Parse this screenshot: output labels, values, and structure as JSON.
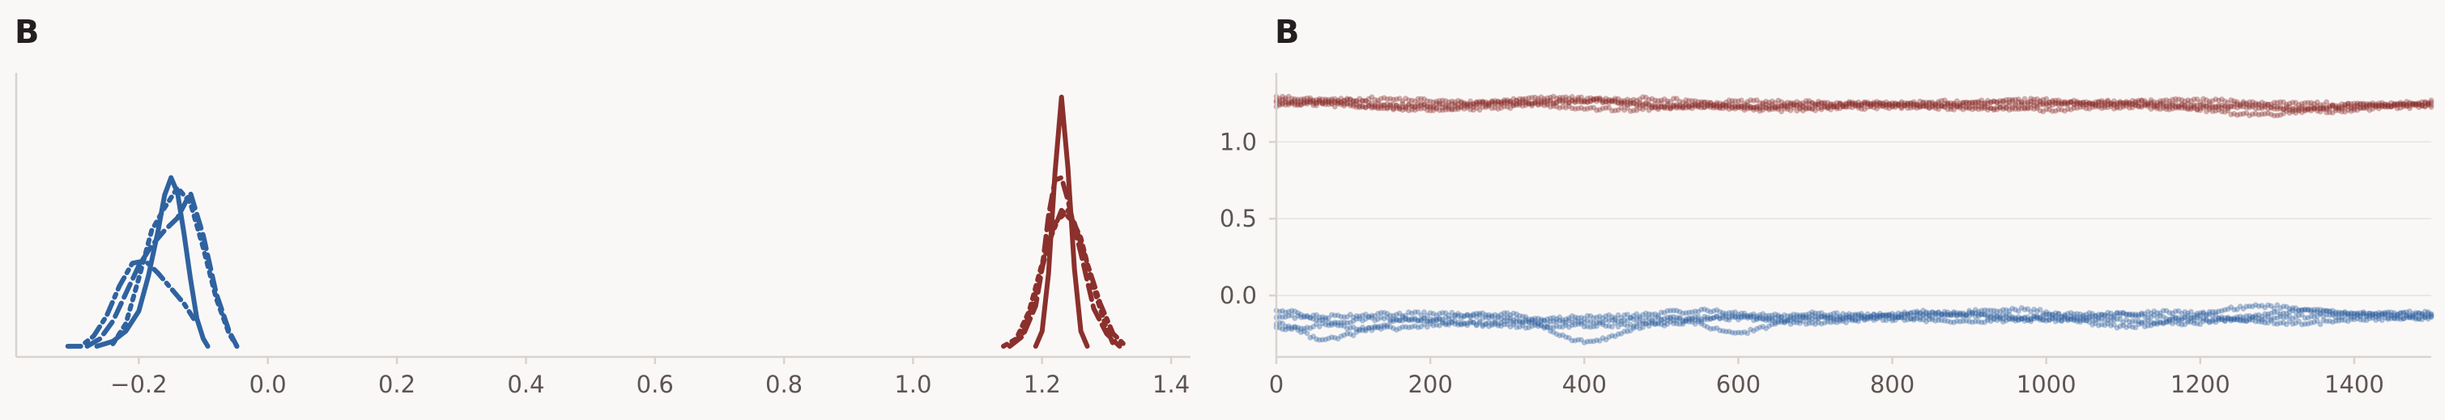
{
  "panels": {
    "left_label": "B",
    "right_label": "B"
  },
  "colors": {
    "blue": "#2f62a0",
    "red": "#8b302c"
  },
  "chart_data": [
    {
      "type": "line",
      "subtype": "density",
      "title": "",
      "xlabel": "",
      "ylabel": "",
      "xlim": [
        -0.39,
        1.43
      ],
      "ylim": [
        0,
        1.0
      ],
      "xticks": [
        "−0.2",
        "0.0",
        "0.2",
        "0.4",
        "0.6",
        "0.8",
        "1.0",
        "1.2",
        "1.4"
      ],
      "xtick_values": [
        -0.2,
        0.0,
        0.2,
        0.4,
        0.6,
        0.8,
        1.0,
        1.2,
        1.4
      ],
      "yticks": [],
      "grid": false,
      "series": [
        {
          "group": "blue",
          "style": "solid",
          "x": [
            -0.265,
            -0.24,
            -0.22,
            -0.2,
            -0.185,
            -0.17,
            -0.16,
            -0.15,
            -0.14,
            -0.13,
            -0.12,
            -0.11,
            -0.1,
            -0.093
          ],
          "y": [
            0.01,
            0.03,
            0.07,
            0.15,
            0.29,
            0.47,
            0.61,
            0.68,
            0.62,
            0.46,
            0.28,
            0.12,
            0.04,
            0.01
          ]
        },
        {
          "group": "blue",
          "style": "dash",
          "x": [
            -0.28,
            -0.26,
            -0.24,
            -0.22,
            -0.2,
            -0.18,
            -0.16,
            -0.14,
            -0.12,
            -0.1,
            -0.08,
            -0.06,
            -0.048
          ],
          "y": [
            0.01,
            0.04,
            0.11,
            0.22,
            0.33,
            0.41,
            0.47,
            0.52,
            0.62,
            0.45,
            0.22,
            0.07,
            0.01
          ]
        },
        {
          "group": "blue",
          "style": "dot",
          "x": [
            -0.24,
            -0.22,
            -0.2,
            -0.18,
            -0.16,
            -0.14,
            -0.12,
            -0.1,
            -0.08,
            -0.06,
            -0.048
          ],
          "y": [
            0.02,
            0.1,
            0.28,
            0.47,
            0.56,
            0.64,
            0.58,
            0.4,
            0.2,
            0.06,
            0.01
          ]
        },
        {
          "group": "blue",
          "style": "dashdot",
          "x": [
            -0.31,
            -0.29,
            -0.27,
            -0.25,
            -0.23,
            -0.21,
            -0.19,
            -0.17,
            -0.15,
            -0.13,
            -0.115
          ],
          "y": [
            0.01,
            0.01,
            0.05,
            0.13,
            0.25,
            0.34,
            0.35,
            0.3,
            0.24,
            0.18,
            0.12
          ]
        },
        {
          "group": "red",
          "style": "solid",
          "x": [
            1.19,
            1.2,
            1.21,
            1.22,
            1.23,
            1.24,
            1.25,
            1.26,
            1.27
          ],
          "y": [
            0.01,
            0.07,
            0.3,
            0.7,
            1.0,
            0.72,
            0.32,
            0.07,
            0.01
          ]
        },
        {
          "group": "red",
          "style": "dash",
          "x": [
            1.15,
            1.17,
            1.19,
            1.2,
            1.21,
            1.22,
            1.23,
            1.24,
            1.25,
            1.26,
            1.27,
            1.28,
            1.3,
            1.32
          ],
          "y": [
            0.01,
            0.05,
            0.17,
            0.32,
            0.53,
            0.67,
            0.68,
            0.59,
            0.48,
            0.38,
            0.27,
            0.16,
            0.06,
            0.01
          ]
        },
        {
          "group": "red",
          "style": "dot",
          "x": [
            1.14,
            1.16,
            1.18,
            1.2,
            1.22,
            1.24,
            1.26,
            1.28,
            1.3,
            1.31
          ],
          "y": [
            0.01,
            0.04,
            0.15,
            0.34,
            0.5,
            0.55,
            0.44,
            0.24,
            0.08,
            0.02
          ]
        },
        {
          "group": "red",
          "style": "dashdot",
          "x": [
            1.15,
            1.17,
            1.19,
            1.21,
            1.23,
            1.25,
            1.27,
            1.29,
            1.31,
            1.33
          ],
          "y": [
            0.01,
            0.06,
            0.22,
            0.42,
            0.55,
            0.5,
            0.34,
            0.18,
            0.06,
            0.01
          ]
        }
      ]
    },
    {
      "type": "scatter",
      "subtype": "trace",
      "title": "",
      "xlabel": "",
      "ylabel": "",
      "xlim": [
        0,
        1500
      ],
      "ylim": [
        -0.4,
        1.45
      ],
      "xticks": [
        "0",
        "200",
        "400",
        "600",
        "800",
        "1000",
        "1200",
        "1400"
      ],
      "xtick_values": [
        0,
        200,
        400,
        600,
        800,
        1000,
        1200,
        1400
      ],
      "yticks": [
        "0.0",
        "0.5",
        "1.0"
      ],
      "ytick_values": [
        0.0,
        0.5,
        1.0
      ],
      "grid": true,
      "draws": 1500,
      "series": [
        {
          "group": "red",
          "center": 1.235,
          "anchors": [
            [
              0,
              1.29
            ],
            [
              80,
              1.27
            ],
            [
              160,
              1.24
            ],
            [
              260,
              1.22
            ],
            [
              400,
              1.27
            ],
            [
              500,
              1.24
            ],
            [
              620,
              1.22
            ],
            [
              760,
              1.24
            ],
            [
              900,
              1.22
            ],
            [
              1100,
              1.26
            ],
            [
              1280,
              1.18
            ],
            [
              1400,
              1.24
            ],
            [
              1500,
              1.25
            ]
          ]
        },
        {
          "group": "red",
          "center": 1.235,
          "anchors": [
            [
              0,
              1.24
            ],
            [
              120,
              1.28
            ],
            [
              300,
              1.25
            ],
            [
              450,
              1.21
            ],
            [
              600,
              1.26
            ],
            [
              800,
              1.25
            ],
            [
              1000,
              1.21
            ],
            [
              1150,
              1.24
            ],
            [
              1320,
              1.22
            ],
            [
              1500,
              1.23
            ]
          ]
        },
        {
          "group": "red",
          "center": 1.235,
          "anchors": [
            [
              0,
              1.27
            ],
            [
              200,
              1.21
            ],
            [
              350,
              1.29
            ],
            [
              520,
              1.23
            ],
            [
              700,
              1.24
            ],
            [
              880,
              1.26
            ],
            [
              1050,
              1.25
            ],
            [
              1200,
              1.27
            ],
            [
              1380,
              1.2
            ],
            [
              1500,
              1.26
            ]
          ]
        },
        {
          "group": "red",
          "center": 1.235,
          "anchors": [
            [
              0,
              1.25
            ],
            [
              150,
              1.23
            ],
            [
              330,
              1.26
            ],
            [
              480,
              1.28
            ],
            [
              650,
              1.21
            ],
            [
              820,
              1.23
            ],
            [
              980,
              1.27
            ],
            [
              1180,
              1.22
            ],
            [
              1300,
              1.25
            ],
            [
              1500,
              1.24
            ]
          ]
        },
        {
          "group": "blue",
          "center": -0.15,
          "anchors": [
            [
              0,
              -0.18
            ],
            [
              60,
              -0.28
            ],
            [
              180,
              -0.16
            ],
            [
              300,
              -0.12
            ],
            [
              400,
              -0.3
            ],
            [
              520,
              -0.16
            ],
            [
              600,
              -0.24
            ],
            [
              700,
              -0.12
            ],
            [
              820,
              -0.14
            ],
            [
              960,
              -0.09
            ],
            [
              1100,
              -0.2
            ],
            [
              1280,
              -0.07
            ],
            [
              1400,
              -0.12
            ],
            [
              1500,
              -0.11
            ]
          ]
        },
        {
          "group": "blue",
          "center": -0.15,
          "anchors": [
            [
              0,
              -0.1
            ],
            [
              120,
              -0.22
            ],
            [
              260,
              -0.18
            ],
            [
              420,
              -0.14
            ],
            [
              560,
              -0.1
            ],
            [
              680,
              -0.18
            ],
            [
              860,
              -0.12
            ],
            [
              1000,
              -0.16
            ],
            [
              1150,
              -0.11
            ],
            [
              1320,
              -0.18
            ],
            [
              1500,
              -0.14
            ]
          ]
        },
        {
          "group": "blue",
          "center": -0.15,
          "anchors": [
            [
              0,
              -0.22
            ],
            [
              140,
              -0.15
            ],
            [
              320,
              -0.2
            ],
            [
              480,
              -0.19
            ],
            [
              620,
              -0.13
            ],
            [
              780,
              -0.15
            ],
            [
              900,
              -0.17
            ],
            [
              1060,
              -0.12
            ],
            [
              1220,
              -0.16
            ],
            [
              1380,
              -0.13
            ],
            [
              1500,
              -0.12
            ]
          ]
        },
        {
          "group": "blue",
          "center": -0.15,
          "anchors": [
            [
              0,
              -0.14
            ],
            [
              200,
              -0.12
            ],
            [
              360,
              -0.17
            ],
            [
              540,
              -0.15
            ],
            [
              700,
              -0.15
            ],
            [
              840,
              -0.11
            ],
            [
              1020,
              -0.15
            ],
            [
              1180,
              -0.18
            ],
            [
              1340,
              -0.1
            ],
            [
              1500,
              -0.15
            ]
          ]
        }
      ]
    }
  ]
}
